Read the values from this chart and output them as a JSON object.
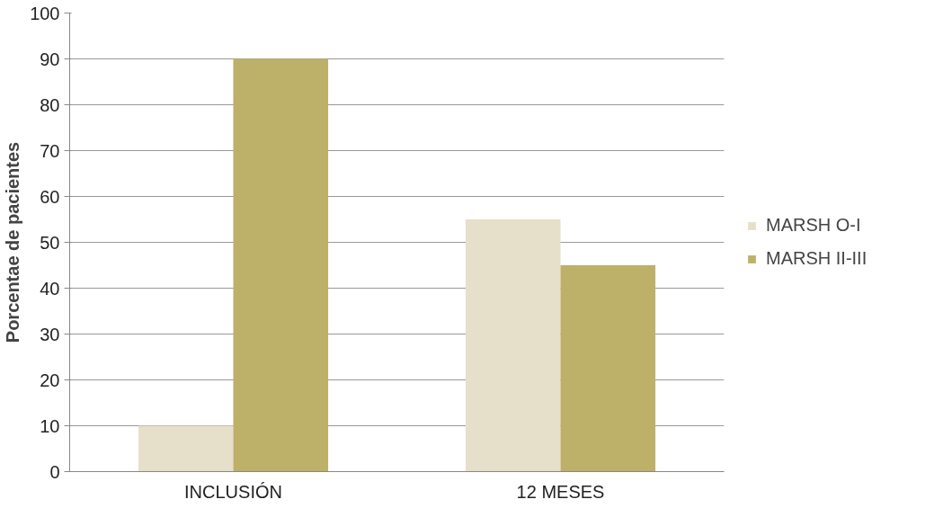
{
  "chart_data": {
    "type": "bar",
    "ylabel": "Porcentae de pacientes",
    "categories": [
      "INCLUSIÓN",
      "12 MESES"
    ],
    "series": [
      {
        "name": "MARSH O-I",
        "color": "#e6dfc9",
        "values": [
          10,
          55
        ]
      },
      {
        "name": "MARSH II-III",
        "color": "#bdb068",
        "values": [
          90,
          45
        ]
      }
    ],
    "ylim": [
      0,
      100
    ],
    "yticks": [
      0,
      10,
      20,
      30,
      40,
      50,
      60,
      70,
      80,
      90,
      100
    ],
    "grid": "y",
    "legend": "right"
  }
}
